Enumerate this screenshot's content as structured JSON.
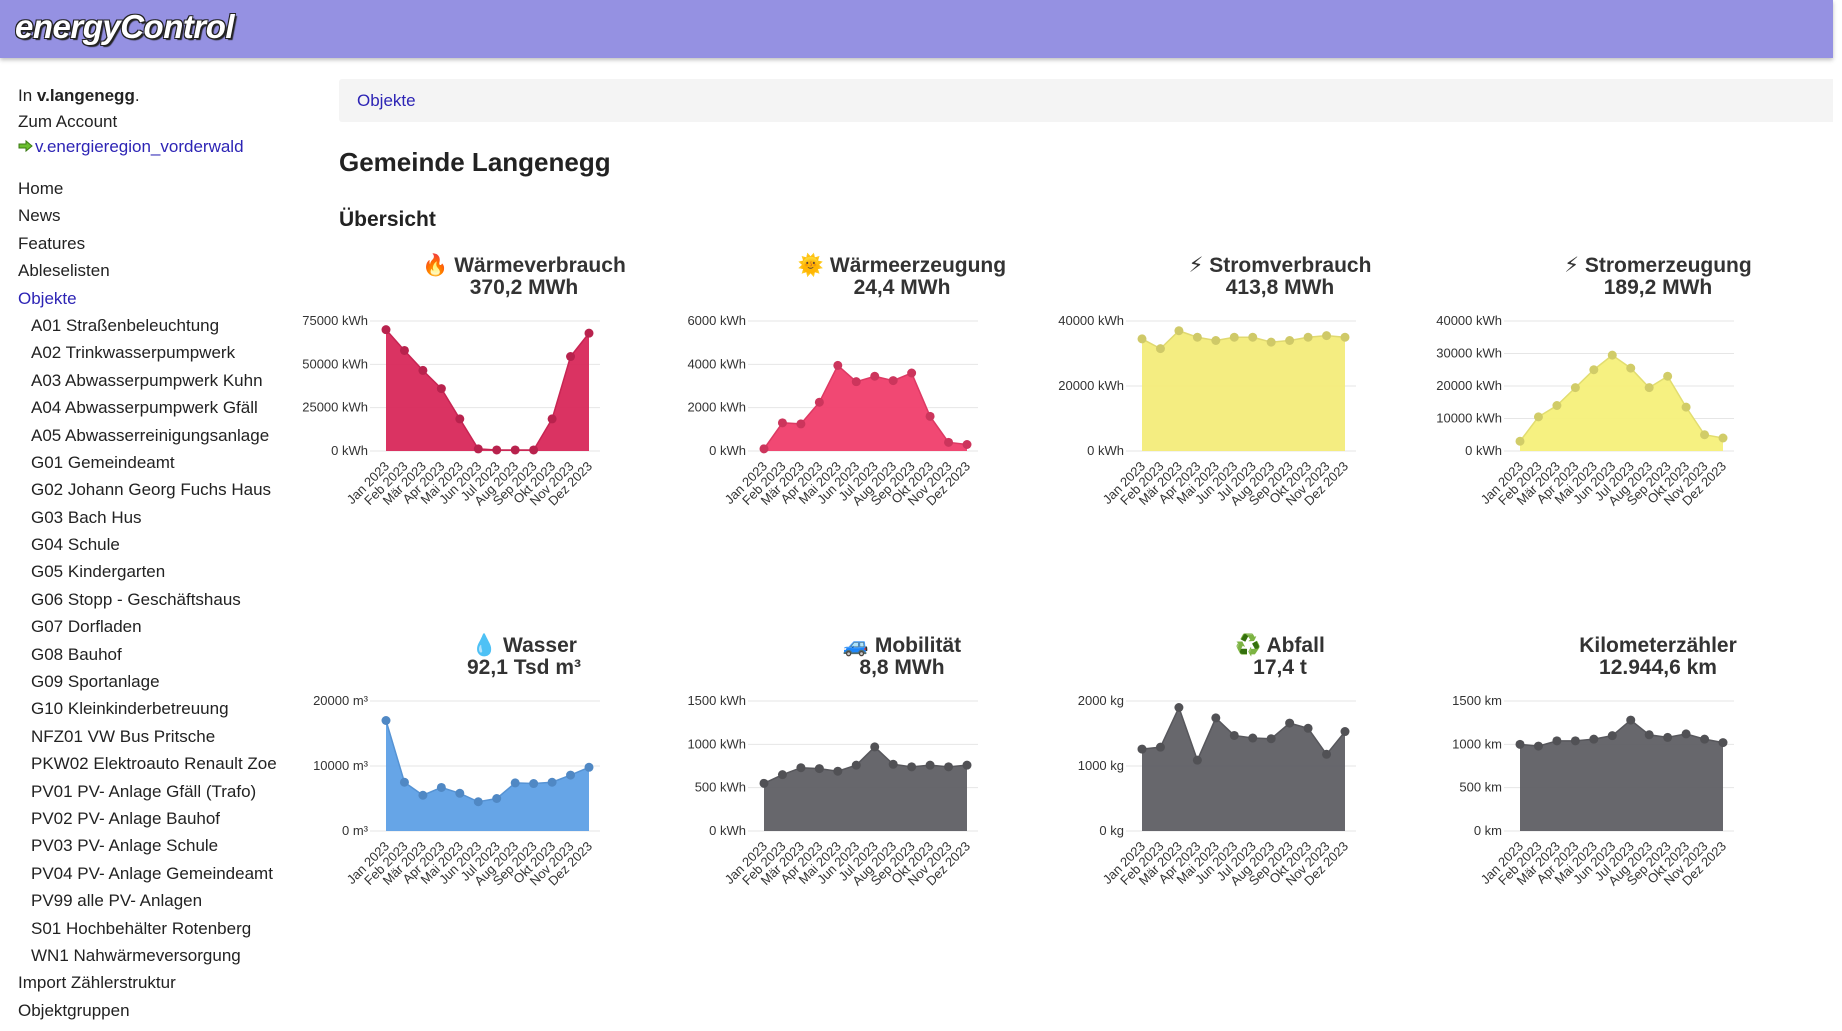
{
  "app": {
    "name": "energyControl"
  },
  "user": {
    "prefix": "In ",
    "name": "v.langenegg",
    "suffix": ".",
    "account_link": "Zum Account",
    "org_link": "v.energieregion_vorderwald"
  },
  "nav": [
    {
      "label": "Home",
      "active": false,
      "sub": false
    },
    {
      "label": "News",
      "active": false,
      "sub": false
    },
    {
      "label": "Features",
      "active": false,
      "sub": false
    },
    {
      "label": "Ablesel isten",
      "active": false,
      "sub": false
    },
    {
      "label": "Objekte",
      "active": true,
      "sub": false
    },
    {
      "label": "A01 Straßenbeleuchtung",
      "active": false,
      "sub": true
    },
    {
      "label": "A02 Trinkwasserpumpwerk",
      "active": false,
      "sub": true
    },
    {
      "label": "A03 Abwasserpumpwerk Kuhn",
      "active": false,
      "sub": true
    },
    {
      "label": "A04 Abwasserpumpwerk Gfäll",
      "active": false,
      "sub": true
    },
    {
      "label": "A05 Abwasserreinigungsanlage",
      "active": false,
      "sub": true
    },
    {
      "label": "G01 Gemeindeamt",
      "active": false,
      "sub": true
    },
    {
      "label": "G02 Johann Georg Fuchs Haus",
      "active": false,
      "sub": true
    },
    {
      "label": "G03 Bach Hus",
      "active": false,
      "sub": true
    },
    {
      "label": "G04 Schule",
      "active": false,
      "sub": true
    },
    {
      "label": "G05 Kindergarten",
      "active": false,
      "sub": true
    },
    {
      "label": "G06 Stopp - Geschäftshaus",
      "active": false,
      "sub": true
    },
    {
      "label": "G07 Dorfladen",
      "active": false,
      "sub": true
    },
    {
      "label": "G08 Bauhof",
      "active": false,
      "sub": true
    },
    {
      "label": "G09 Sportanlage",
      "active": false,
      "sub": true
    },
    {
      "label": "G10 Kleinkinderbetreuung",
      "active": false,
      "sub": true
    },
    {
      "label": "NFZ01 VW Bus Pritsche",
      "active": false,
      "sub": true
    },
    {
      "label": "PKW02 Elektroauto Renault Zoe",
      "active": false,
      "sub": true
    },
    {
      "label": "PV01 PV- Anlage Gfäll (Trafo)",
      "active": false,
      "sub": true
    },
    {
      "label": "PV02 PV- Anlage Bauhof",
      "active": false,
      "sub": true
    },
    {
      "label": "PV03 PV- Anlage Schule",
      "active": false,
      "sub": true
    },
    {
      "label": "PV04 PV- Anlage Gemeindeamt",
      "active": false,
      "sub": true
    },
    {
      "label": "PV99 alle PV- Anlagen",
      "active": false,
      "sub": true
    },
    {
      "label": "S01 Hochbehälter Rotenberg",
      "active": false,
      "sub": true
    },
    {
      "label": "WN1 Nahwärmeversorgung",
      "active": false,
      "sub": true
    },
    {
      "label": "Import Zählerstruktur",
      "active": false,
      "sub": false
    },
    {
      "label": "Objektgruppen",
      "active": false,
      "sub": false
    }
  ],
  "breadcrumb": {
    "label": "Objekte"
  },
  "page_title": "Gemeinde Langenegg",
  "section_title": "Übersicht",
  "months": [
    "Jan 2023",
    "Feb 2023",
    "Mär 2023",
    "Apr 2023",
    "Mai 2023",
    "Jun 2023",
    "Jul 2023",
    "Aug 2023",
    "Sep 2023",
    "Okt 2023",
    "Nov 2023",
    "Dez 2023"
  ],
  "chart_data": [
    {
      "type": "area",
      "icon": "🔥",
      "icon_name": "fire-icon",
      "title": "Wärmeverbrauch",
      "total": "370,2 MWh",
      "color": "#d8285a",
      "x": [
        "Jan 2023",
        "Feb 2023",
        "Mär 2023",
        "Apr 2023",
        "Mai 2023",
        "Jun 2023",
        "Jul 2023",
        "Aug 2023",
        "Sep 2023",
        "Okt 2023",
        "Nov 2023",
        "Dez 2023"
      ],
      "values": [
        70000,
        58000,
        46500,
        36000,
        18500,
        1200,
        600,
        600,
        600,
        18500,
        54500,
        68000
      ],
      "ylim": [
        0,
        75000
      ],
      "yticks": [
        {
          "v": 0,
          "label": "0 kWh"
        },
        {
          "v": 25000,
          "label": "25000 kWh"
        },
        {
          "v": 50000,
          "label": "50000 kWh"
        },
        {
          "v": 75000,
          "label": "75000 kWh"
        }
      ]
    },
    {
      "type": "area",
      "icon": "🌞",
      "icon_name": "sun-icon",
      "title": "Wärmeerzeugung",
      "total": "24,4 MWh",
      "color": "#f03e6c",
      "x": [
        "Jan 2023",
        "Feb 2023",
        "Mär 2023",
        "Apr 2023",
        "Mai 2023",
        "Jun 2023",
        "Jul 2023",
        "Aug 2023",
        "Sep 2023",
        "Okt 2023",
        "Nov 2023",
        "Dez 2023"
      ],
      "values": [
        100,
        1300,
        1250,
        2250,
        3950,
        3200,
        3450,
        3250,
        3600,
        1600,
        400,
        300
      ],
      "ylim": [
        0,
        6000
      ],
      "yticks": [
        {
          "v": 0,
          "label": "0 kWh"
        },
        {
          "v": 2000,
          "label": "2000 kWh"
        },
        {
          "v": 4000,
          "label": "4000 kWh"
        },
        {
          "v": 6000,
          "label": "6000 kWh"
        }
      ]
    },
    {
      "type": "area",
      "icon": "⚡",
      "icon_name": "lightning-icon",
      "title": "Stromverbrauch",
      "total": "413,8 MWh",
      "color": "#f3ec7a",
      "x": [
        "Jan 2023",
        "Feb 2023",
        "Mär 2023",
        "Apr 2023",
        "Mai 2023",
        "Jun 2023",
        "Jul 2023",
        "Aug 2023",
        "Sep 2023",
        "Okt 2023",
        "Nov 2023",
        "Dez 2023"
      ],
      "values": [
        34500,
        31500,
        37000,
        35000,
        34000,
        35000,
        35000,
        33500,
        34000,
        35000,
        35500,
        35000
      ],
      "ylim": [
        0,
        40000
      ],
      "yticks": [
        {
          "v": 0,
          "label": "0 kWh"
        },
        {
          "v": 20000,
          "label": "20000 kWh"
        },
        {
          "v": 40000,
          "label": "40000 kWh"
        }
      ]
    },
    {
      "type": "area",
      "icon": "⚡",
      "icon_name": "lightning-icon",
      "title": "Stromerzeugung",
      "total": "189,2 MWh",
      "color": "#f6f07a",
      "x": [
        "Jan 2023",
        "Feb 2023",
        "Mär 2023",
        "Apr 2023",
        "Mai 2023",
        "Jun 2023",
        "Jul 2023",
        "Aug 2023",
        "Sep 2023",
        "Okt 2023",
        "Nov 2023",
        "Dez 2023"
      ],
      "values": [
        3000,
        10500,
        14000,
        19500,
        25000,
        29500,
        25500,
        19500,
        23000,
        13500,
        5000,
        4000
      ],
      "ylim": [
        0,
        40000
      ],
      "yticks": [
        {
          "v": 0,
          "label": "0 kWh"
        },
        {
          "v": 10000,
          "label": "10000 kWh"
        },
        {
          "v": 20000,
          "label": "20000 kWh"
        },
        {
          "v": 30000,
          "label": "30000 kWh"
        },
        {
          "v": 40000,
          "label": "40000 kWh"
        }
      ]
    },
    {
      "type": "area",
      "icon": "💧",
      "icon_name": "water-drop-icon",
      "title": "Wasser",
      "total": "92,1 Tsd m³",
      "color": "#5ea0e6",
      "x": [
        "Jan 2023",
        "Feb 2023",
        "Mär 2023",
        "Apr 2023",
        "Mai 2023",
        "Jun 2023",
        "Jul 2023",
        "Aug 2023",
        "Sep 2023",
        "Okt 2023",
        "Nov 2023",
        "Dez 2023"
      ],
      "values": [
        17000,
        7500,
        5500,
        6700,
        5800,
        4500,
        5000,
        7400,
        7300,
        7500,
        8600,
        9800
      ],
      "ylim": [
        0,
        20000
      ],
      "yticks": [
        {
          "v": 0,
          "label": "0 m³"
        },
        {
          "v": 10000,
          "label": "10000 m³"
        },
        {
          "v": 20000,
          "label": "20000 m³"
        }
      ]
    },
    {
      "type": "area",
      "icon": "🚙",
      "icon_name": "car-icon",
      "title": "Mobilität",
      "total": "8,8 MWh",
      "color": "#5f5f64",
      "x": [
        "Jan 2023",
        "Feb 2023",
        "Mär 2023",
        "Apr 2023",
        "Mai 2023",
        "Jun 2023",
        "Jul 2023",
        "Aug 2023",
        "Sep 2023",
        "Okt 2023",
        "Nov 2023",
        "Dez 2023"
      ],
      "values": [
        550,
        650,
        730,
        720,
        690,
        760,
        970,
        770,
        740,
        760,
        740,
        760
      ],
      "ylim": [
        0,
        1500
      ],
      "yticks": [
        {
          "v": 0,
          "label": "0 kWh"
        },
        {
          "v": 500,
          "label": "500 kWh"
        },
        {
          "v": 1000,
          "label": "1000 kWh"
        },
        {
          "v": 1500,
          "label": "1500 kWh"
        }
      ]
    },
    {
      "type": "area",
      "icon": "♻️",
      "icon_name": "recycle-icon",
      "title": "Abfall",
      "total": "17,4 t",
      "color": "#5f5f64",
      "x": [
        "Jan 2023",
        "Feb 2023",
        "Mär 2023",
        "Apr 2023",
        "Mai 2023",
        "Jun 2023",
        "Jul 2023",
        "Aug 2023",
        "Sep 2023",
        "Okt 2023",
        "Nov 2023",
        "Dez 2023"
      ],
      "values": [
        1260,
        1290,
        1900,
        1090,
        1740,
        1470,
        1430,
        1420,
        1660,
        1580,
        1180,
        1530
      ],
      "ylim": [
        0,
        2000
      ],
      "yticks": [
        {
          "v": 0,
          "label": "0 kg"
        },
        {
          "v": 1000,
          "label": "1000 kg"
        },
        {
          "v": 2000,
          "label": "2000 kg"
        }
      ]
    },
    {
      "type": "area",
      "icon": "",
      "icon_name": "",
      "title": "Kilometerzähler",
      "total": "12.944,6 km",
      "color": "#5f5f64",
      "x": [
        "Jan 2023",
        "Feb 2023",
        "Mär 2023",
        "Apr 2023",
        "Mai 2023",
        "Jun 2023",
        "Jul 2023",
        "Aug 2023",
        "Sep 2023",
        "Okt 2023",
        "Nov 2023",
        "Dez 2023"
      ],
      "values": [
        1000,
        980,
        1040,
        1040,
        1060,
        1100,
        1280,
        1110,
        1080,
        1120,
        1060,
        1020
      ],
      "ylim": [
        0,
        1500
      ],
      "yticks": [
        {
          "v": 0,
          "label": "0 km"
        },
        {
          "v": 500,
          "label": "500 km"
        },
        {
          "v": 1000,
          "label": "1000 km"
        },
        {
          "v": 1500,
          "label": "1500 km"
        }
      ]
    }
  ]
}
